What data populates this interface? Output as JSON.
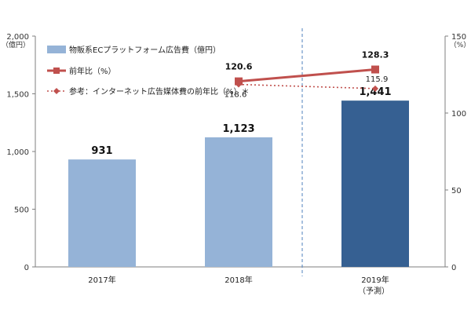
{
  "chart_data": {
    "type": "bar",
    "categories": [
      "2017年",
      "2018年",
      "2019年"
    ],
    "category_notes": [
      "",
      "",
      "（予測）"
    ],
    "left_axis": {
      "unit": "（億円）",
      "ylim": [
        0,
        2000
      ],
      "ticks": [
        0,
        500,
        1000,
        1500,
        2000
      ],
      "tick_labels": [
        "0",
        "500",
        "1,000",
        "1,500",
        "2,000"
      ]
    },
    "right_axis": {
      "unit": "（%）",
      "ylim": [
        0,
        150
      ],
      "ticks": [
        0,
        50,
        100,
        150
      ],
      "tick_labels": [
        "0",
        "50",
        "100",
        "150"
      ]
    },
    "series": [
      {
        "name": "物販系ECプラットフォーム広告費（億円）",
        "type": "bar",
        "axis": "left",
        "values": [
          931,
          1123,
          1441
        ],
        "labels": [
          "931",
          "1,123",
          "1,441"
        ],
        "colors": [
          "#95b3d7",
          "#95b3d7",
          "#366092"
        ]
      },
      {
        "name": "前年比（%）",
        "type": "line",
        "axis": "right",
        "values": [
          null,
          120.6,
          128.3
        ],
        "labels": [
          "",
          "120.6",
          "128.3"
        ],
        "color": "#c0504d",
        "marker": "square"
      },
      {
        "name": "参考：インターネット広告媒体費の前年比（%）＊",
        "type": "line",
        "axis": "right",
        "dashed": true,
        "values": [
          null,
          118.6,
          115.9
        ],
        "labels": [
          "",
          "118.6",
          "115.9"
        ],
        "color": "#c0504d",
        "marker": "diamond"
      }
    ],
    "forecast_divider": true,
    "grid": false,
    "legend_position": "top-left"
  }
}
